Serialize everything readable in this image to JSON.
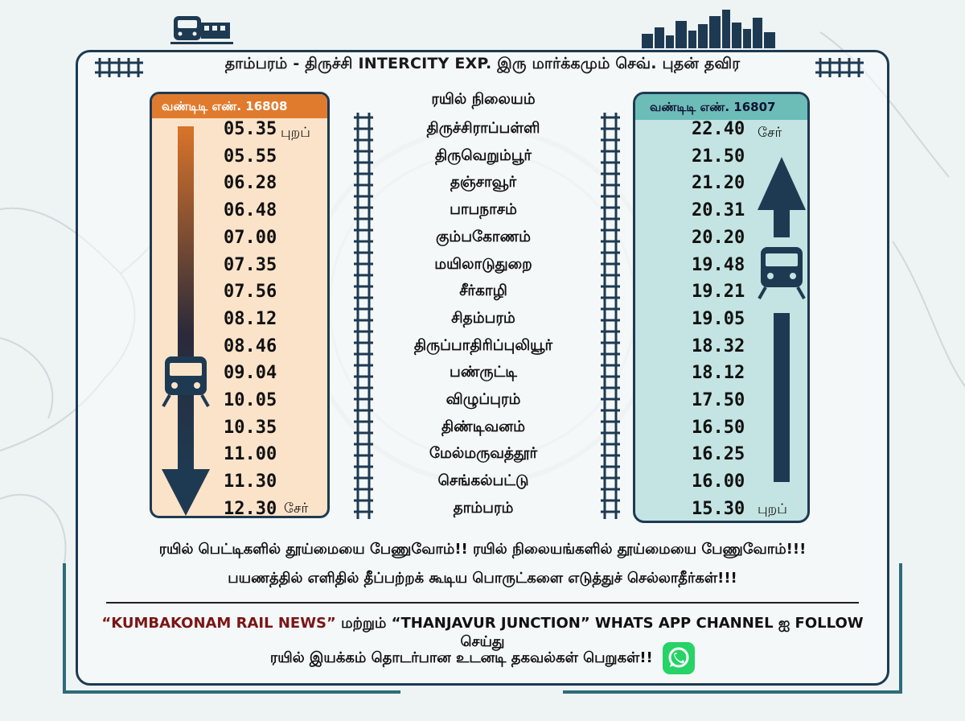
{
  "title": "தாம்பரம் - திருச்சி INTERCITY EXP. இரு மார்க்கமும் செவ். புதன் தவிர",
  "left_panel": {
    "train_no": "வண்டிடி எண். 16808",
    "depart_label": "புறப்",
    "arrive_label": "சேர்",
    "times": [
      "05.35",
      "05.55",
      "06.28",
      "06.48",
      "07.00",
      "07.35",
      "07.56",
      "08.12",
      "08.46",
      "09.04",
      "10.05",
      "10.35",
      "11.00",
      "11.30",
      "12.30"
    ]
  },
  "stations_header": "ரயில் நிலையம்",
  "stations": [
    "திருச்சிராப்பள்ளி",
    "திருவெறும்பூர்",
    "தஞ்சாவூர்",
    "பாபநாசம்",
    "கும்பகோணம்",
    "மயிலாடுதுறை",
    "சீர்காழி",
    "சிதம்பரம்",
    "திருப்பாதிரிப்புலியூர்",
    "பண்ருட்டி",
    "விழுப்புரம்",
    "திண்டிவனம்",
    "மேல்மருவத்தூர்",
    "செங்கல்பட்டு",
    "தாம்பரம்"
  ],
  "right_panel": {
    "train_no": "வண்டிடி எண். 16807",
    "arrive_label": "சேர்",
    "depart_label": "புறப்",
    "times": [
      "22.40",
      "21.50",
      "21.20",
      "20.31",
      "20.20",
      "19.48",
      "19.21",
      "19.05",
      "18.32",
      "18.12",
      "17.50",
      "16.50",
      "16.25",
      "16.00",
      "15.30"
    ]
  },
  "notices": [
    "ரயில் பெட்டிகளில் தூய்மையை பேணுவோம்!! ரயில் நிலையங்களில் தூய்மையை பேணுவோம்!!!",
    "பயணத்தில் எளிதில் தீப்பற்றக் கூடிய பொருட்களை எடுத்துச் செல்லாதீர்கள்!!!"
  ],
  "footer": {
    "brand": "“KUMBAKONAM RAIL NEWS”",
    "middle": " மற்றும் “THANJAVUR JUNCTION” WHATS APP CHANNEL ஐ FOLLOW செய்து",
    "line2": "ரயில் இயக்கம் தொடர்பான உடனடி தகவல்கள் பெறுகள்!!"
  },
  "colors": {
    "accent_orange": "#e07b2e",
    "accent_teal": "#6cbcb8",
    "navy": "#1e3a52",
    "whatsapp": "#25d366"
  },
  "icons": [
    "train-icon",
    "skyline-icon",
    "track-icon",
    "arrow-down-icon",
    "arrow-up-icon",
    "whatsapp-icon"
  ]
}
